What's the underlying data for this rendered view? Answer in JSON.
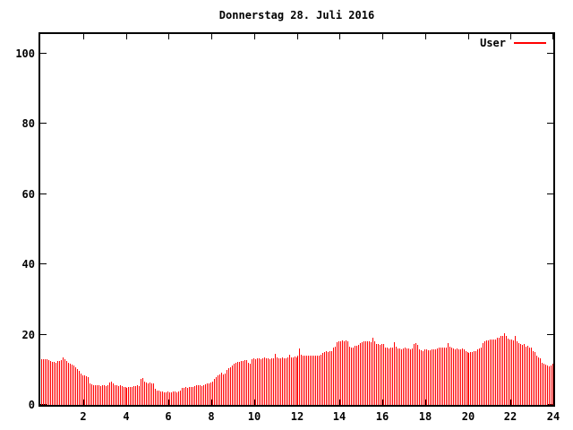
{
  "title": "Donnerstag 28. Juli 2016",
  "legend": {
    "label": "User"
  },
  "colors": {
    "series": "#ff0000",
    "axis": "#000000",
    "background": "#ffffff",
    "text": "#000000"
  },
  "chart_data": {
    "type": "bar",
    "style": "impulses",
    "title": "Donnerstag 28. Juli 2016",
    "xlabel": "",
    "ylabel": "",
    "grid": false,
    "legend_position": "top-right",
    "x_range_hours": [
      0,
      24
    ],
    "ylim": [
      0,
      105.5
    ],
    "xticks": [
      2,
      4,
      6,
      8,
      10,
      12,
      14,
      16,
      18,
      20,
      22,
      24
    ],
    "yticks": [
      0,
      20,
      40,
      60,
      80,
      100
    ],
    "sample_interval_minutes": 5,
    "series": [
      {
        "name": "User",
        "color": "#ff0000",
        "values": [
          13.1,
          13.0,
          13.0,
          12.9,
          12.7,
          12.4,
          12.2,
          12.3,
          12.1,
          12.4,
          12.6,
          12.8,
          13.5,
          12.9,
          12.4,
          12.0,
          11.7,
          11.4,
          11.1,
          10.7,
          10.2,
          9.6,
          9.0,
          8.5,
          8.3,
          8.1,
          7.9,
          6.0,
          5.8,
          5.6,
          5.5,
          5.6,
          5.5,
          5.4,
          5.6,
          5.5,
          5.4,
          5.5,
          6.3,
          6.5,
          6.2,
          5.6,
          5.5,
          5.4,
          5.5,
          5.3,
          5.2,
          5.0,
          4.9,
          5.0,
          5.1,
          5.0,
          5.3,
          5.4,
          5.5,
          5.4,
          7.3,
          7.6,
          6.5,
          6.3,
          6.2,
          6.3,
          6.2,
          6.0,
          4.5,
          4.2,
          4.0,
          3.8,
          3.7,
          3.6,
          3.6,
          3.7,
          3.6,
          3.5,
          3.8,
          3.7,
          3.6,
          3.8,
          4.0,
          4.8,
          4.9,
          5.0,
          4.9,
          5.0,
          5.1,
          5.0,
          5.4,
          5.5,
          5.6,
          5.5,
          5.4,
          5.6,
          5.9,
          6.0,
          6.2,
          6.4,
          6.6,
          7.5,
          8.0,
          8.4,
          8.6,
          9.2,
          8.7,
          8.8,
          10.0,
          10.4,
          10.8,
          11.3,
          11.6,
          12.1,
          12.3,
          12.2,
          12.4,
          12.6,
          12.8,
          12.7,
          11.9,
          11.8,
          13.0,
          13.2,
          13.1,
          13.2,
          13.3,
          13.1,
          13.2,
          13.4,
          13.2,
          13.3,
          13.1,
          13.2,
          13.3,
          14.6,
          13.4,
          13.3,
          13.2,
          13.4,
          13.3,
          13.2,
          13.4,
          14.3,
          13.5,
          13.6,
          13.8,
          13.6,
          14.0,
          16.0,
          14.2,
          14.1,
          14.0,
          13.9,
          14.0,
          14.1,
          14.0,
          13.9,
          14.0,
          14.1,
          14.0,
          14.2,
          14.8,
          15.0,
          15.2,
          15.1,
          15.3,
          15.2,
          16.3,
          16.6,
          17.8,
          18.0,
          18.2,
          18.4,
          18.2,
          18.3,
          18.0,
          16.5,
          16.3,
          16.4,
          16.7,
          16.8,
          17.0,
          17.6,
          17.8,
          18.0,
          18.2,
          18.1,
          18.0,
          17.9,
          19.1,
          18.2,
          17.4,
          17.3,
          17.2,
          17.3,
          17.4,
          16.3,
          16.2,
          16.1,
          16.2,
          16.3,
          17.8,
          16.5,
          16.1,
          16.0,
          15.9,
          16.0,
          16.2,
          16.1,
          16.0,
          15.9,
          16.0,
          17.3,
          17.5,
          17.2,
          15.8,
          15.6,
          15.4,
          15.7,
          15.8,
          15.6,
          15.6,
          15.7,
          15.8,
          15.7,
          16.1,
          16.2,
          16.3,
          16.2,
          16.4,
          16.3,
          17.5,
          16.5,
          16.2,
          16.0,
          15.9,
          16.0,
          15.8,
          15.9,
          16.0,
          15.8,
          15.2,
          15.0,
          14.9,
          15.0,
          15.1,
          15.2,
          15.3,
          15.8,
          16.0,
          16.2,
          17.5,
          18.0,
          18.3,
          18.4,
          18.5,
          18.6,
          18.7,
          18.6,
          19.0,
          19.2,
          19.5,
          19.7,
          20.3,
          19.5,
          18.8,
          18.6,
          18.5,
          18.3,
          19.5,
          18.2,
          17.5,
          17.3,
          17.2,
          17.3,
          16.5,
          16.9,
          16.3,
          16.3,
          15.2,
          15.0,
          14.0,
          13.5,
          13.2,
          12.0,
          11.8,
          11.5,
          11.2,
          11.0,
          11.3,
          11.7
        ]
      }
    ]
  }
}
